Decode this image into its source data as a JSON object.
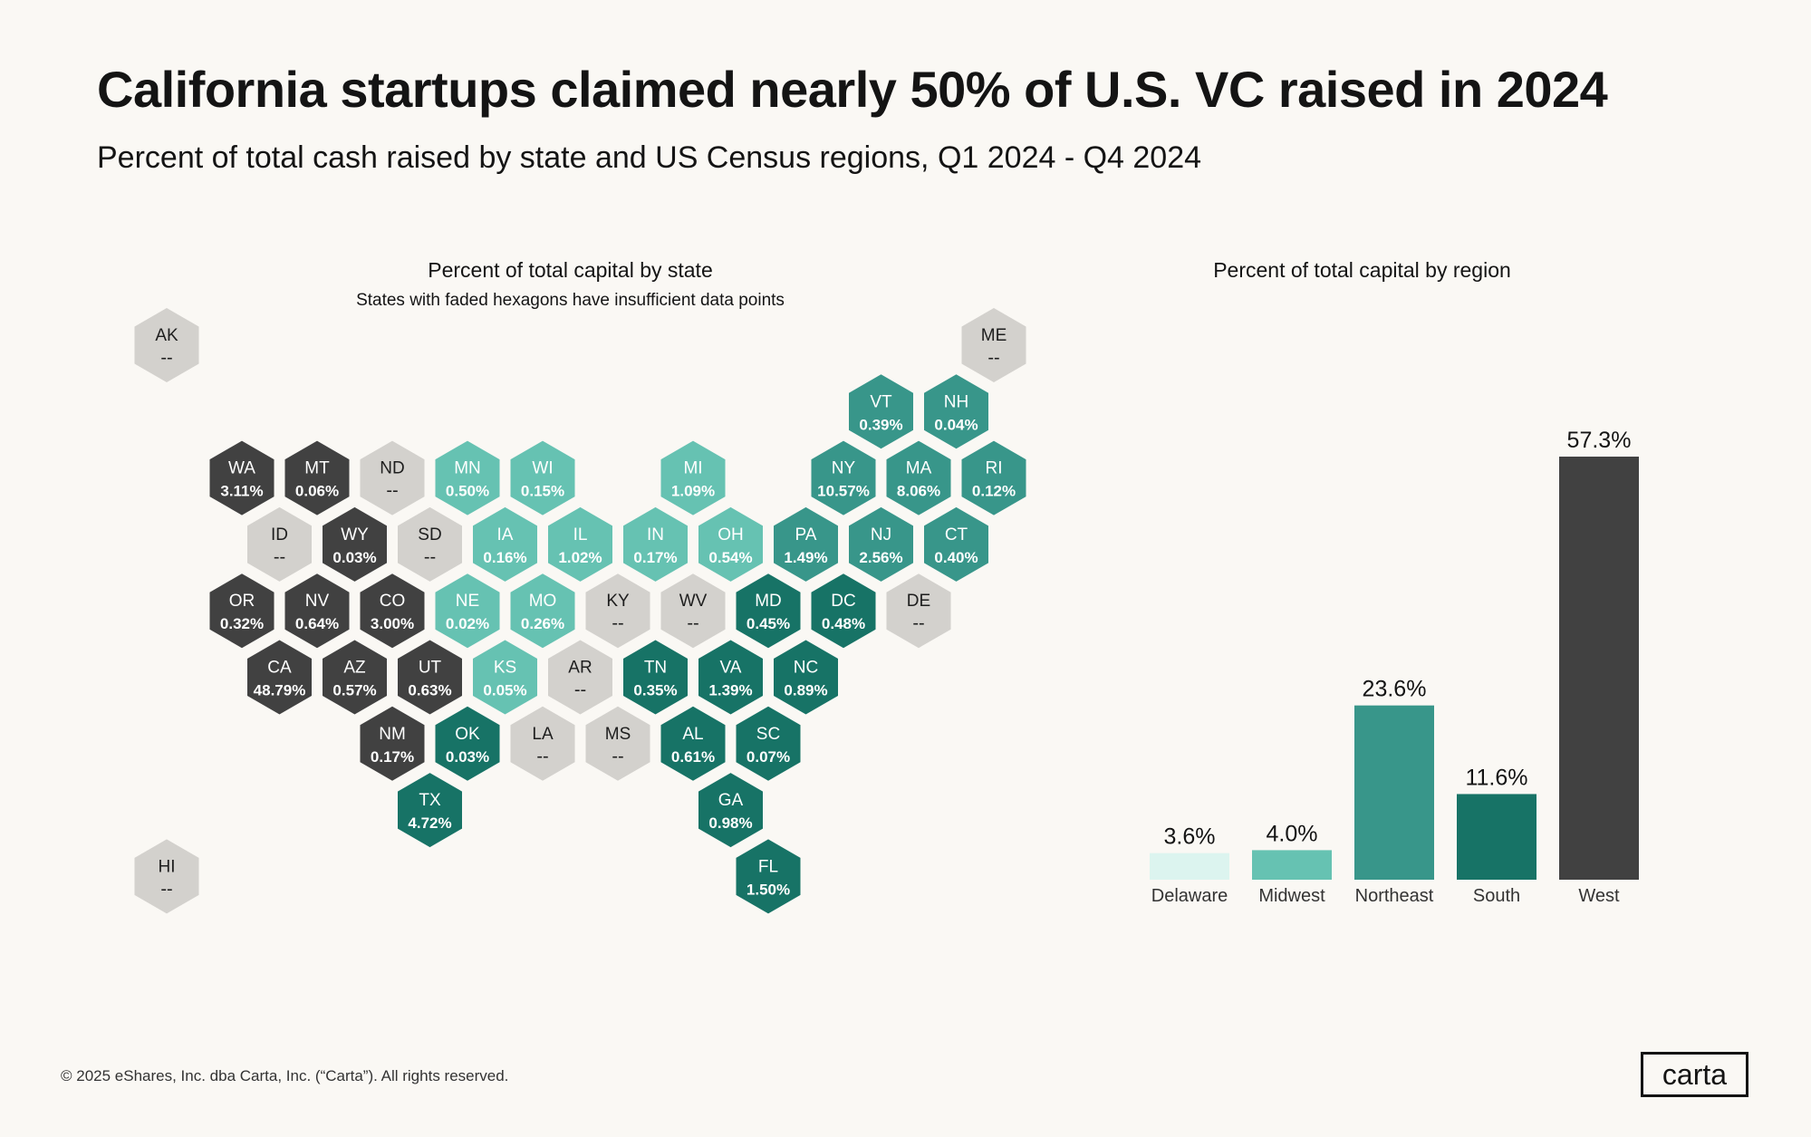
{
  "header": {
    "title": "California startups claimed nearly 50% of U.S. VC raised in 2024",
    "subtitle": "Percent of total cash raised by state and US Census regions, Q1 2024 - Q4 2024"
  },
  "colors": {
    "West": "#414141",
    "Midwest": "#66c2b2",
    "Northeast": "#38968a",
    "South": "#177366",
    "Delaware": "#dcf4ef",
    "Insufficient": "#d3d1cd"
  },
  "chart_data": [
    {
      "type": "hexmap",
      "title": "Percent of total capital by state",
      "note": "States with faded hexagons have insufficient data points",
      "states": [
        {
          "code": "AK",
          "value": "--",
          "group": "Insufficient",
          "row": 0,
          "col": 0
        },
        {
          "code": "ME",
          "value": "--",
          "group": "Insufficient",
          "row": 0,
          "col": 11
        },
        {
          "code": "VT",
          "value": "0.39%",
          "group": "Northeast",
          "row": 1,
          "col": 9.5
        },
        {
          "code": "NH",
          "value": "0.04%",
          "group": "Northeast",
          "row": 1,
          "col": 10.5
        },
        {
          "code": "WA",
          "value": "3.11%",
          "group": "West",
          "row": 2,
          "col": 1
        },
        {
          "code": "MT",
          "value": "0.06%",
          "group": "West",
          "row": 2,
          "col": 2
        },
        {
          "code": "ND",
          "value": "--",
          "group": "Insufficient",
          "row": 2,
          "col": 3
        },
        {
          "code": "MN",
          "value": "0.50%",
          "group": "Midwest",
          "row": 2,
          "col": 4
        },
        {
          "code": "WI",
          "value": "0.15%",
          "group": "Midwest",
          "row": 2,
          "col": 5
        },
        {
          "code": "MI",
          "value": "1.09%",
          "group": "Midwest",
          "row": 2,
          "col": 7
        },
        {
          "code": "NY",
          "value": "10.57%",
          "group": "Northeast",
          "row": 2,
          "col": 9
        },
        {
          "code": "MA",
          "value": "8.06%",
          "group": "Northeast",
          "row": 2,
          "col": 10
        },
        {
          "code": "RI",
          "value": "0.12%",
          "group": "Northeast",
          "row": 2,
          "col": 11
        },
        {
          "code": "ID",
          "value": "--",
          "group": "Insufficient",
          "row": 3,
          "col": 1.5
        },
        {
          "code": "WY",
          "value": "0.03%",
          "group": "West",
          "row": 3,
          "col": 2.5
        },
        {
          "code": "SD",
          "value": "--",
          "group": "Insufficient",
          "row": 3,
          "col": 3.5
        },
        {
          "code": "IA",
          "value": "0.16%",
          "group": "Midwest",
          "row": 3,
          "col": 4.5
        },
        {
          "code": "IL",
          "value": "1.02%",
          "group": "Midwest",
          "row": 3,
          "col": 5.5
        },
        {
          "code": "IN",
          "value": "0.17%",
          "group": "Midwest",
          "row": 3,
          "col": 6.5
        },
        {
          "code": "OH",
          "value": "0.54%",
          "group": "Midwest",
          "row": 3,
          "col": 7.5
        },
        {
          "code": "PA",
          "value": "1.49%",
          "group": "Northeast",
          "row": 3,
          "col": 8.5
        },
        {
          "code": "NJ",
          "value": "2.56%",
          "group": "Northeast",
          "row": 3,
          "col": 9.5
        },
        {
          "code": "CT",
          "value": "0.40%",
          "group": "Northeast",
          "row": 3,
          "col": 10.5
        },
        {
          "code": "OR",
          "value": "0.32%",
          "group": "West",
          "row": 4,
          "col": 1
        },
        {
          "code": "NV",
          "value": "0.64%",
          "group": "West",
          "row": 4,
          "col": 2
        },
        {
          "code": "CO",
          "value": "3.00%",
          "group": "West",
          "row": 4,
          "col": 3
        },
        {
          "code": "NE",
          "value": "0.02%",
          "group": "Midwest",
          "row": 4,
          "col": 4
        },
        {
          "code": "MO",
          "value": "0.26%",
          "group": "Midwest",
          "row": 4,
          "col": 5
        },
        {
          "code": "KY",
          "value": "--",
          "group": "Insufficient",
          "row": 4,
          "col": 6
        },
        {
          "code": "WV",
          "value": "--",
          "group": "Insufficient",
          "row": 4,
          "col": 7
        },
        {
          "code": "MD",
          "value": "0.45%",
          "group": "South",
          "row": 4,
          "col": 8
        },
        {
          "code": "DC",
          "value": "0.48%",
          "group": "South",
          "row": 4,
          "col": 9
        },
        {
          "code": "DE",
          "value": "--",
          "group": "Insufficient",
          "row": 4,
          "col": 10
        },
        {
          "code": "CA",
          "value": "48.79%",
          "group": "West",
          "row": 5,
          "col": 1.5
        },
        {
          "code": "AZ",
          "value": "0.57%",
          "group": "West",
          "row": 5,
          "col": 2.5
        },
        {
          "code": "UT",
          "value": "0.63%",
          "group": "West",
          "row": 5,
          "col": 3.5
        },
        {
          "code": "KS",
          "value": "0.05%",
          "group": "Midwest",
          "row": 5,
          "col": 4.5
        },
        {
          "code": "AR",
          "value": "--",
          "group": "Insufficient",
          "row": 5,
          "col": 5.5
        },
        {
          "code": "TN",
          "value": "0.35%",
          "group": "South",
          "row": 5,
          "col": 6.5
        },
        {
          "code": "VA",
          "value": "1.39%",
          "group": "South",
          "row": 5,
          "col": 7.5
        },
        {
          "code": "NC",
          "value": "0.89%",
          "group": "South",
          "row": 5,
          "col": 8.5
        },
        {
          "code": "NM",
          "value": "0.17%",
          "group": "West",
          "row": 6,
          "col": 3
        },
        {
          "code": "OK",
          "value": "0.03%",
          "group": "South",
          "row": 6,
          "col": 4
        },
        {
          "code": "LA",
          "value": "--",
          "group": "Insufficient",
          "row": 6,
          "col": 5
        },
        {
          "code": "MS",
          "value": "--",
          "group": "Insufficient",
          "row": 6,
          "col": 6
        },
        {
          "code": "AL",
          "value": "0.61%",
          "group": "South",
          "row": 6,
          "col": 7
        },
        {
          "code": "SC",
          "value": "0.07%",
          "group": "South",
          "row": 6,
          "col": 8
        },
        {
          "code": "TX",
          "value": "4.72%",
          "group": "South",
          "row": 7,
          "col": 3.5
        },
        {
          "code": "GA",
          "value": "0.98%",
          "group": "South",
          "row": 7,
          "col": 7.5
        },
        {
          "code": "HI",
          "value": "--",
          "group": "Insufficient",
          "row": 8,
          "col": 0
        },
        {
          "code": "FL",
          "value": "1.50%",
          "group": "South",
          "row": 8,
          "col": 8
        }
      ]
    },
    {
      "type": "bar",
      "title": "Percent of total capital by region",
      "categories": [
        "Delaware",
        "Midwest",
        "Northeast",
        "South",
        "West"
      ],
      "values": [
        3.6,
        4.0,
        23.6,
        11.6,
        57.3
      ],
      "labels": [
        "3.6%",
        "4.0%",
        "23.6%",
        "11.6%",
        "57.3%"
      ],
      "ylim": [
        0,
        60
      ]
    }
  ],
  "footer": {
    "copyright": "© 2025 eShares, Inc. dba Carta, Inc. (“Carta”). All rights reserved.",
    "logo": "carta"
  }
}
